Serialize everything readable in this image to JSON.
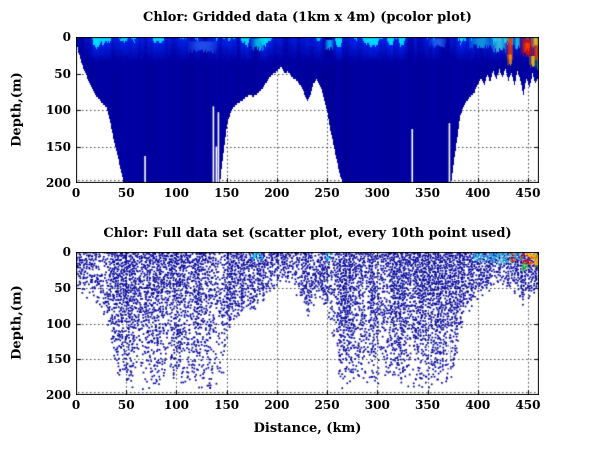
{
  "figure": {
    "background_color": "#ffffff",
    "axis_color": "#000000",
    "font_color": "#000000",
    "grid_style": "dotted"
  },
  "chart_data": [
    {
      "type": "heatmap",
      "plot_style": "pcolor",
      "title": "Chlor: Gridded data (1km x 4m) (pcolor plot)",
      "ylabel": "Depth,(m)",
      "xlabel": "",
      "xlim": [
        0,
        460
      ],
      "ylim": [
        0,
        200
      ],
      "y_axis_reversed": true,
      "x_ticks": [
        0,
        50,
        100,
        150,
        200,
        250,
        300,
        350,
        400,
        450
      ],
      "y_ticks": [
        0,
        50,
        100,
        150,
        200
      ],
      "grid": "dotted",
      "colormap": "jet",
      "base_color": "#0000a2",
      "no_data_color": "#ffffff",
      "envelope_km_depth": [
        [
          0,
          6
        ],
        [
          2,
          20
        ],
        [
          5,
          34
        ],
        [
          8,
          46
        ],
        [
          12,
          58
        ],
        [
          16,
          70
        ],
        [
          20,
          80
        ],
        [
          25,
          88
        ],
        [
          30,
          96
        ],
        [
          34,
          118
        ],
        [
          38,
          146
        ],
        [
          42,
          168
        ],
        [
          45,
          186
        ],
        [
          47,
          200
        ],
        [
          136,
          200
        ],
        [
          143,
          198
        ],
        [
          146,
          160
        ],
        [
          150,
          118
        ],
        [
          154,
          100
        ],
        [
          158,
          92
        ],
        [
          163,
          88
        ],
        [
          168,
          82
        ],
        [
          172,
          78
        ],
        [
          176,
          80
        ],
        [
          180,
          76
        ],
        [
          184,
          71
        ],
        [
          188,
          63
        ],
        [
          192,
          55
        ],
        [
          196,
          49
        ],
        [
          200,
          45
        ],
        [
          204,
          39
        ],
        [
          206,
          44
        ],
        [
          208,
          49
        ],
        [
          210,
          45
        ],
        [
          213,
          51
        ],
        [
          216,
          55
        ],
        [
          220,
          59
        ],
        [
          224,
          67
        ],
        [
          227,
          77
        ],
        [
          230,
          86
        ],
        [
          233,
          79
        ],
        [
          236,
          62
        ],
        [
          239,
          57
        ],
        [
          241,
          61
        ],
        [
          244,
          71
        ],
        [
          247,
          87
        ],
        [
          250,
          104
        ],
        [
          253,
          127
        ],
        [
          256,
          147
        ],
        [
          259,
          167
        ],
        [
          262,
          185
        ],
        [
          265,
          200
        ],
        [
          362,
          200
        ],
        [
          373,
          200
        ],
        [
          376,
          168
        ],
        [
          379,
          138
        ],
        [
          382,
          108
        ],
        [
          385,
          94
        ],
        [
          388,
          87
        ],
        [
          392,
          81
        ],
        [
          396,
          75
        ],
        [
          400,
          63
        ],
        [
          403,
          55
        ],
        [
          406,
          65
        ],
        [
          409,
          49
        ],
        [
          412,
          61
        ],
        [
          415,
          45
        ],
        [
          418,
          57
        ],
        [
          421,
          43
        ],
        [
          424,
          55
        ],
        [
          427,
          41
        ],
        [
          430,
          59
        ],
        [
          433,
          47
        ],
        [
          436,
          65
        ],
        [
          439,
          45
        ],
        [
          442,
          57
        ],
        [
          445,
          79
        ],
        [
          448,
          55
        ],
        [
          451,
          67
        ],
        [
          454,
          49
        ],
        [
          457,
          63
        ],
        [
          460,
          54
        ]
      ],
      "data_gaps_km_topdepth": [
        [
          68,
          163
        ],
        [
          136,
          95
        ],
        [
          139,
          150
        ],
        [
          141,
          103
        ],
        [
          334,
          126
        ],
        [
          371,
          118
        ]
      ],
      "surface_features": [
        {
          "x0": 112,
          "x1": 140,
          "d0": 6,
          "d1": 20,
          "color": "#2255ee"
        },
        {
          "x0": 175,
          "x1": 187,
          "d0": 2,
          "d1": 16,
          "color": "#00c8e8"
        },
        {
          "x0": 248,
          "x1": 256,
          "d0": 4,
          "d1": 16,
          "color": "#00b4ff"
        },
        {
          "x0": 352,
          "x1": 368,
          "d0": 2,
          "d1": 12,
          "color": "#2266ee"
        },
        {
          "x0": 392,
          "x1": 414,
          "d0": 0,
          "d1": 13,
          "color": "#11a0e0"
        },
        {
          "x0": 414,
          "x1": 428,
          "d0": 0,
          "d1": 18,
          "color": "#33c8e0"
        },
        {
          "x0": 429,
          "x1": 435,
          "d0": 0,
          "d1": 28,
          "color": "#ee3300"
        },
        {
          "x0": 430,
          "x1": 434,
          "d0": 24,
          "d1": 40,
          "color": "#ff9900"
        },
        {
          "x0": 436,
          "x1": 442,
          "d0": 0,
          "d1": 14,
          "color": "#22c8e0"
        },
        {
          "x0": 443,
          "x1": 455,
          "d0": 2,
          "d1": 24,
          "color": "#dd1100"
        },
        {
          "x0": 446,
          "x1": 452,
          "d0": 8,
          "d1": 18,
          "color": "#ff4400"
        },
        {
          "x0": 454,
          "x1": 461,
          "d0": 0,
          "d1": 12,
          "color": "#ffc800"
        },
        {
          "x0": 455,
          "x1": 462,
          "d0": 12,
          "d1": 30,
          "color": "#ee4400"
        },
        {
          "x0": 452,
          "x1": 457,
          "d0": 26,
          "d1": 40,
          "color": "#ffcc00"
        },
        {
          "x0": 458,
          "x1": 462,
          "d0": 30,
          "d1": 44,
          "color": "#33bb66"
        }
      ]
    },
    {
      "type": "scatter",
      "title": "Chlor: Full data set (scatter plot, every 10th point used)",
      "ylabel": "Depth,(m)",
      "xlabel": "Distance, (km)",
      "xlim": [
        0,
        460
      ],
      "ylim": [
        0,
        200
      ],
      "y_axis_reversed": true,
      "x_ticks": [
        0,
        50,
        100,
        150,
        200,
        250,
        300,
        350,
        400,
        450
      ],
      "y_ticks": [
        0,
        50,
        100,
        150,
        200
      ],
      "grid": "dotted",
      "dot_color": "#000099",
      "dot_size_px": 2,
      "max_dot_depth": 193,
      "envelope_km_depth": [
        [
          0,
          44
        ],
        [
          4,
          52
        ],
        [
          8,
          60
        ],
        [
          12,
          66
        ],
        [
          16,
          74
        ],
        [
          20,
          84
        ],
        [
          25,
          92
        ],
        [
          30,
          100
        ],
        [
          34,
          124
        ],
        [
          38,
          152
        ],
        [
          42,
          172
        ],
        [
          45,
          186
        ],
        [
          47,
          193
        ],
        [
          137,
          193
        ],
        [
          144,
          190
        ],
        [
          147,
          156
        ],
        [
          151,
          116
        ],
        [
          156,
          97
        ],
        [
          161,
          89
        ],
        [
          166,
          84
        ],
        [
          171,
          79
        ],
        [
          176,
          81
        ],
        [
          181,
          75
        ],
        [
          186,
          69
        ],
        [
          191,
          59
        ],
        [
          196,
          51
        ],
        [
          201,
          47
        ],
        [
          205,
          43
        ],
        [
          209,
          49
        ],
        [
          213,
          53
        ],
        [
          217,
          57
        ],
        [
          221,
          61
        ],
        [
          225,
          69
        ],
        [
          228,
          79
        ],
        [
          231,
          87
        ],
        [
          234,
          79
        ],
        [
          237,
          63
        ],
        [
          240,
          59
        ],
        [
          243,
          63
        ],
        [
          246,
          73
        ],
        [
          249,
          89
        ],
        [
          252,
          107
        ],
        [
          255,
          129
        ],
        [
          258,
          149
        ],
        [
          261,
          171
        ],
        [
          264,
          193
        ],
        [
          362,
          193
        ],
        [
          372,
          193
        ],
        [
          376,
          166
        ],
        [
          380,
          136
        ],
        [
          383,
          106
        ],
        [
          386,
          93
        ],
        [
          390,
          85
        ],
        [
          394,
          77
        ],
        [
          398,
          67
        ],
        [
          402,
          57
        ],
        [
          405,
          65
        ],
        [
          408,
          49
        ],
        [
          411,
          59
        ],
        [
          414,
          45
        ],
        [
          417,
          55
        ],
        [
          420,
          43
        ],
        [
          423,
          53
        ],
        [
          426,
          41
        ],
        [
          429,
          57
        ],
        [
          432,
          47
        ],
        [
          435,
          63
        ],
        [
          438,
          45
        ],
        [
          441,
          55
        ],
        [
          444,
          77
        ],
        [
          447,
          55
        ],
        [
          450,
          65
        ],
        [
          453,
          49
        ],
        [
          456,
          61
        ],
        [
          460,
          53
        ]
      ],
      "data_gaps_km_topdepth": [
        [
          371,
          125
        ]
      ],
      "surface_features": [
        {
          "x0": 176,
          "x1": 184,
          "d0": 0,
          "d1": 10,
          "color": "#00c8e8"
        },
        {
          "x0": 248,
          "x1": 254,
          "d0": 2,
          "d1": 10,
          "color": "#00b4ff"
        },
        {
          "x0": 396,
          "x1": 420,
          "d0": 0,
          "d1": 12,
          "color": "#22a8e0"
        },
        {
          "x0": 420,
          "x1": 432,
          "d0": 0,
          "d1": 16,
          "color": "#33c8e0"
        },
        {
          "x0": 432,
          "x1": 436,
          "d0": 0,
          "d1": 12,
          "color": "#ee3300"
        },
        {
          "x0": 437,
          "x1": 443,
          "d0": 0,
          "d1": 10,
          "color": "#33c8e0"
        },
        {
          "x0": 443,
          "x1": 452,
          "d0": 2,
          "d1": 18,
          "color": "#dd1100"
        },
        {
          "x0": 448,
          "x1": 456,
          "d0": 0,
          "d1": 8,
          "color": "#ffc800"
        },
        {
          "x0": 452,
          "x1": 458,
          "d0": 6,
          "d1": 16,
          "color": "#ff6600"
        },
        {
          "x0": 456,
          "x1": 462,
          "d0": 0,
          "d1": 20,
          "color": "#ffcc00"
        },
        {
          "x0": 444,
          "x1": 448,
          "d0": 16,
          "d1": 26,
          "color": "#44cc44"
        }
      ]
    }
  ]
}
